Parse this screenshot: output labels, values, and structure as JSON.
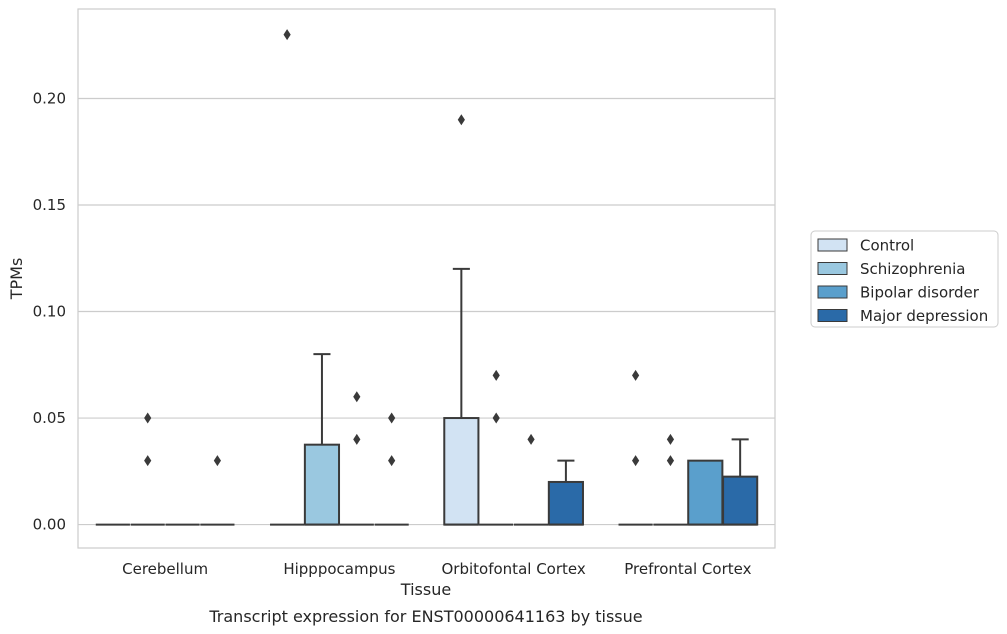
{
  "chart_data": {
    "type": "boxplot",
    "title": "Transcript expression for ENST00000641163 by tissue",
    "xlabel": "Tissue",
    "ylabel": "TPMs",
    "ylim": [
      -0.011,
      0.242
    ],
    "yticks": [
      0.0,
      0.05,
      0.1,
      0.15,
      0.2
    ],
    "ytick_labels": [
      "0.00",
      "0.05",
      "0.10",
      "0.15",
      "0.20"
    ],
    "grid": "horizontal",
    "legend_position": "center-right (outside)",
    "categories": [
      "Cerebellum",
      "Hipppocampus",
      "Orbitofontal Cortex",
      "Prefrontal Cortex"
    ],
    "series": [
      {
        "name": "Control",
        "color": "#d2e3f3",
        "boxes": [
          {
            "q1": 0,
            "median": 0,
            "q3": 0,
            "whislo": 0,
            "whishi": 0,
            "fliers": []
          },
          {
            "q1": 0,
            "median": 0,
            "q3": 0,
            "whislo": 0,
            "whishi": 0,
            "fliers": [
              0.23
            ]
          },
          {
            "q1": 0,
            "median": 0,
            "q3": 0.05,
            "whislo": 0,
            "whishi": 0.12,
            "fliers": [
              0.19
            ]
          },
          {
            "q1": 0,
            "median": 0,
            "q3": 0,
            "whislo": 0,
            "whishi": 0,
            "fliers": [
              0.03,
              0.07
            ]
          }
        ]
      },
      {
        "name": "Schizophrenia",
        "color": "#9ac8e0",
        "boxes": [
          {
            "q1": 0,
            "median": 0,
            "q3": 0,
            "whislo": 0,
            "whishi": 0,
            "fliers": [
              0.03,
              0.05
            ]
          },
          {
            "q1": 0,
            "median": 0,
            "q3": 0.0375,
            "whislo": 0,
            "whishi": 0.08,
            "fliers": []
          },
          {
            "q1": 0,
            "median": 0,
            "q3": 0,
            "whislo": 0,
            "whishi": 0,
            "fliers": [
              0.05,
              0.07
            ]
          },
          {
            "q1": 0,
            "median": 0,
            "q3": 0,
            "whislo": 0,
            "whishi": 0,
            "fliers": [
              0.03,
              0.04
            ]
          }
        ]
      },
      {
        "name": "Bipolar disorder",
        "color": "#5a9fcc",
        "boxes": [
          {
            "q1": 0,
            "median": 0,
            "q3": 0,
            "whislo": 0,
            "whishi": 0,
            "fliers": []
          },
          {
            "q1": 0,
            "median": 0,
            "q3": 0,
            "whislo": 0,
            "whishi": 0,
            "fliers": [
              0.04,
              0.06
            ]
          },
          {
            "q1": 0,
            "median": 0,
            "q3": 0,
            "whislo": 0,
            "whishi": 0,
            "fliers": [
              0.04
            ]
          },
          {
            "q1": 0,
            "median": 0,
            "q3": 0.03,
            "whislo": 0,
            "whishi": 0.03,
            "fliers": []
          }
        ]
      },
      {
        "name": "Major depression",
        "color": "#2a6aa8",
        "boxes": [
          {
            "q1": 0,
            "median": 0,
            "q3": 0,
            "whislo": 0,
            "whishi": 0,
            "fliers": [
              0.03
            ]
          },
          {
            "q1": 0,
            "median": 0,
            "q3": 0,
            "whislo": 0,
            "whishi": 0,
            "fliers": [
              0.03,
              0.05
            ]
          },
          {
            "q1": 0,
            "median": 0,
            "q3": 0.02,
            "whislo": 0,
            "whishi": 0.03,
            "fliers": []
          },
          {
            "q1": 0,
            "median": 0,
            "q3": 0.0225,
            "whislo": 0,
            "whishi": 0.04,
            "fliers": []
          }
        ]
      }
    ]
  }
}
